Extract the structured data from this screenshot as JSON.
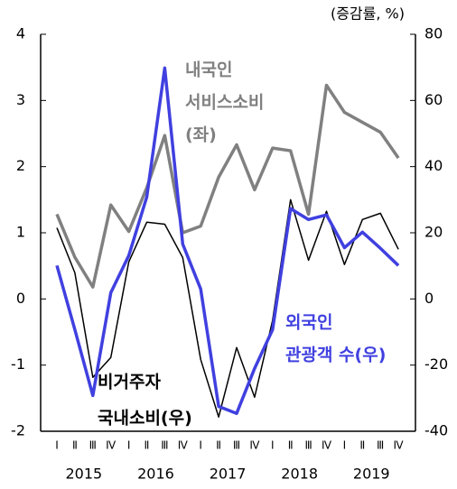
{
  "chart_data": {
    "type": "line",
    "unit_label": "(증감률, %)",
    "categories": [
      "Ⅰ",
      "Ⅱ",
      "Ⅲ",
      "Ⅳ",
      "Ⅰ",
      "Ⅱ",
      "Ⅲ",
      "Ⅳ",
      "Ⅰ",
      "Ⅱ",
      "Ⅲ",
      "Ⅳ",
      "Ⅰ",
      "Ⅱ",
      "Ⅲ",
      "Ⅳ",
      "Ⅰ",
      "Ⅱ",
      "Ⅲ",
      "Ⅳ"
    ],
    "years": [
      "2015",
      "2016",
      "2017",
      "2018",
      "2019"
    ],
    "ylim": [
      -2,
      4
    ],
    "yticks": [
      -2,
      -1,
      0,
      1,
      2,
      3,
      4
    ],
    "y2lim": [
      -40,
      80
    ],
    "y2ticks": [
      -40,
      -20,
      0,
      20,
      40,
      60,
      80
    ],
    "series": [
      {
        "label": [
          "내국인",
          "서비스소비",
          "(좌)"
        ],
        "color": "#808080",
        "axis": "y",
        "values": [
          1.28,
          0.63,
          0.18,
          1.42,
          1.02,
          1.68,
          2.47,
          1.0,
          1.1,
          1.84,
          2.33,
          1.65,
          2.28,
          2.24,
          1.28,
          3.23,
          2.82,
          2.67,
          2.52,
          2.13
        ]
      },
      {
        "label": [
          "비거주자",
          "국내소비(우)"
        ],
        "color": "#000000",
        "axis": "y2",
        "values": [
          21.5,
          7.9,
          -23.7,
          -17.7,
          11.2,
          23.2,
          22.6,
          12.5,
          -18.3,
          -35.7,
          -14.7,
          -29.7,
          -6.5,
          30,
          11.7,
          26.5,
          10.4,
          24,
          25.9,
          15
        ]
      },
      {
        "label": [
          "외국인",
          "관광객 수(우)"
        ],
        "color": "#4040e0",
        "axis": "y2",
        "values": [
          10.1,
          -9.3,
          -29.2,
          1.9,
          13.1,
          30.8,
          69.8,
          16.6,
          3,
          -32.5,
          -34.6,
          -21,
          -9.3,
          27.3,
          24,
          25.4,
          15.5,
          20.2,
          15.3,
          10.1
        ]
      }
    ]
  }
}
